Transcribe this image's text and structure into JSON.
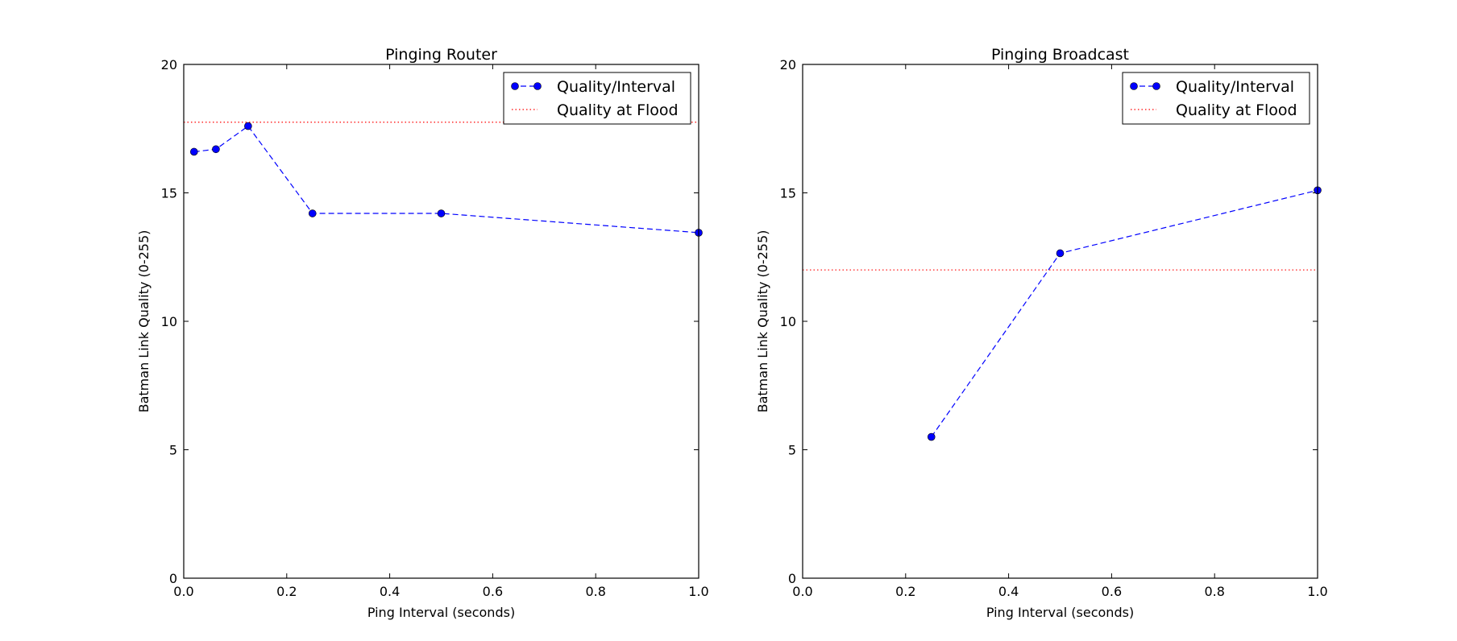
{
  "chart_data": [
    {
      "type": "line",
      "title": "Pinging Router",
      "xlabel": "Ping Interval (seconds)",
      "ylabel": "Batman Link Quality (0-255)",
      "xlim": [
        0.0,
        1.0
      ],
      "ylim": [
        0,
        20
      ],
      "xticks": [
        "0.0",
        "0.2",
        "0.4",
        "0.6",
        "0.8",
        "1.0"
      ],
      "yticks": [
        "0",
        "5",
        "10",
        "15",
        "20"
      ],
      "grid": false,
      "legend_position": "top-right",
      "series": [
        {
          "name": "Quality/Interval",
          "style": "dashed-with-markers",
          "color": "#0000ff",
          "x": [
            0.02,
            0.0625,
            0.125,
            0.25,
            0.5,
            1.0
          ],
          "y": [
            16.6,
            16.7,
            17.6,
            14.2,
            14.2,
            13.45
          ]
        },
        {
          "name": "Quality at Flood",
          "style": "dotted",
          "color": "#ff0000",
          "y": 17.75
        }
      ]
    },
    {
      "type": "line",
      "title": "Pinging Broadcast",
      "xlabel": "Ping Interval (seconds)",
      "ylabel": "Batman Link Quality (0-255)",
      "xlim": [
        0.0,
        1.0
      ],
      "ylim": [
        0,
        20
      ],
      "xticks": [
        "0.0",
        "0.2",
        "0.4",
        "0.6",
        "0.8",
        "1.0"
      ],
      "yticks": [
        "0",
        "5",
        "10",
        "15",
        "20"
      ],
      "grid": false,
      "legend_position": "top-right",
      "series": [
        {
          "name": "Quality/Interval",
          "style": "dashed-with-markers",
          "color": "#0000ff",
          "x": [
            0.25,
            0.5,
            1.0
          ],
          "y": [
            5.5,
            12.65,
            15.1
          ]
        },
        {
          "name": "Quality at Flood",
          "style": "dotted",
          "color": "#ff0000",
          "y": 12.0
        }
      ]
    }
  ]
}
